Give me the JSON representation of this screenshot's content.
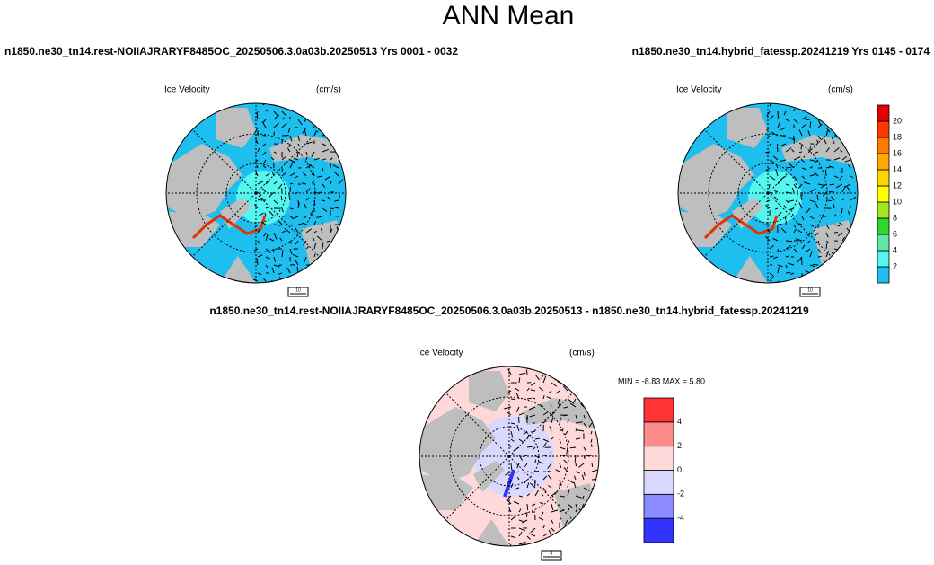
{
  "title": "ANN Mean",
  "panels": [
    {
      "subtitle": "n1850.ne30_tn14.rest-NOIIAJRARYF8485OC_20250506.3.0a03b.20250513  Yrs 0001 - 0032",
      "label": "Ice Velocity",
      "units": "(cm/s)",
      "ref_vector": "10"
    },
    {
      "subtitle": "n1850.ne30_tn14.hybrid_fatessp.20241219  Yrs 0145 - 0174",
      "label": "Ice Velocity",
      "units": "(cm/s)",
      "ref_vector": "10"
    },
    {
      "subtitle": "n1850.ne30_tn14.rest-NOIIAJRARYF8485OC_20250506.3.0a03b.20250513 - n1850.ne30_tn14.hybrid_fatessp.20241219",
      "label": "Ice Velocity",
      "units": "(cm/s)",
      "ref_vector": "4",
      "min_max": "MIN =  -8.83 MAX =   5.80"
    }
  ],
  "colorbar": {
    "ticks": [
      2,
      4,
      6,
      8,
      10,
      12,
      14,
      16,
      18,
      20
    ],
    "colors": [
      "#1ebeee",
      "#55f5f0",
      "#5ee8a5",
      "#2fd62f",
      "#a5e61e",
      "#ffff00",
      "#ffd500",
      "#ffaa00",
      "#ff7a00",
      "#ff3800",
      "#e60000"
    ]
  },
  "diff_colorbar": {
    "ticks": [
      -4,
      -2,
      0,
      2,
      4
    ],
    "colors": [
      "#3333ff",
      "#8c8cff",
      "#d9d9ff",
      "#ffd9d9",
      "#ff8c8c",
      "#ff3333"
    ]
  }
}
